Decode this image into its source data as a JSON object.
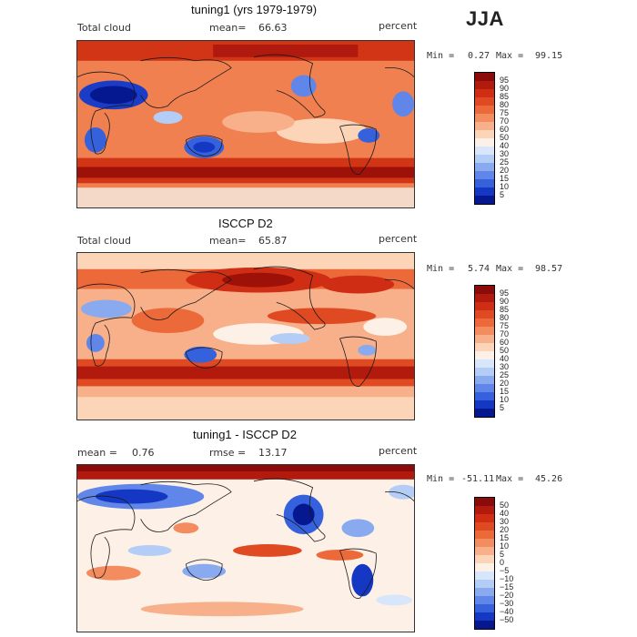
{
  "season": "JJA",
  "panels": [
    {
      "title": "tuning1 (yrs 1979-1979)",
      "left_label": "Total cloud",
      "mid_label": "mean=",
      "mid_value": "66.63",
      "right_label": "percent",
      "min_label": "Min =",
      "min_value": "0.27",
      "max_label": "Max =",
      "max_value": "99.15",
      "colorbar_labels": [
        "95",
        "90",
        "85",
        "80",
        "75",
        "70",
        "60",
        "50",
        "40",
        "30",
        "25",
        "20",
        "15",
        "10",
        "5"
      ]
    },
    {
      "title": "ISCCP D2",
      "left_label": "Total cloud",
      "mid_label": "mean=",
      "mid_value": "65.87",
      "right_label": "percent",
      "min_label": "Min =",
      "min_value": "5.74",
      "max_label": "Max =",
      "max_value": "98.57",
      "colorbar_labels": [
        "95",
        "90",
        "85",
        "80",
        "75",
        "70",
        "60",
        "50",
        "40",
        "30",
        "25",
        "20",
        "15",
        "10",
        "5"
      ]
    },
    {
      "title": "tuning1 - ISCCP D2",
      "left_label": "mean =",
      "left_value": "0.76",
      "mid_label": "rmse =",
      "mid_value": "13.17",
      "right_label": "percent",
      "min_label": "Min =",
      "min_value": "-51.11",
      "max_label": "Max =",
      "max_value": "45.26",
      "colorbar_labels": [
        "50",
        "40",
        "30",
        "20",
        "15",
        "10",
        "5",
        "0",
        "−5",
        "−10",
        "−15",
        "−20",
        "−30",
        "−40",
        "−50"
      ]
    }
  ],
  "colors": {
    "scale": [
      "#8b0a0a",
      "#b21a0e",
      "#cf2e14",
      "#e04a22",
      "#ec6a3a",
      "#f38c5e",
      "#f8b08a",
      "#fcd4b8",
      "#fdf0e6",
      "#d8e6fb",
      "#b4cdf6",
      "#8aaaf0",
      "#5f86e8",
      "#3561dd",
      "#1438c4",
      "#06188f"
    ],
    "border": "#000000",
    "coast": "#1a1a1a"
  },
  "chart_data": [
    {
      "type": "heatmap",
      "title": "tuning1 (yrs 1979-1979)",
      "variable": "Total cloud",
      "units": "percent",
      "mean": 66.63,
      "min": 0.27,
      "max": 99.15,
      "levels": [
        5,
        10,
        15,
        20,
        25,
        30,
        40,
        50,
        60,
        70,
        75,
        80,
        85,
        90,
        95
      ]
    },
    {
      "type": "heatmap",
      "title": "ISCCP D2",
      "variable": "Total cloud",
      "units": "percent",
      "mean": 65.87,
      "min": 5.74,
      "max": 98.57,
      "levels": [
        5,
        10,
        15,
        20,
        25,
        30,
        40,
        50,
        60,
        70,
        75,
        80,
        85,
        90,
        95
      ]
    },
    {
      "type": "heatmap",
      "title": "tuning1 - ISCCP D2",
      "units": "percent",
      "mean": 0.76,
      "rmse": 13.17,
      "min": -51.11,
      "max": 45.26,
      "levels": [
        -50,
        -40,
        -30,
        -20,
        -15,
        -10,
        -5,
        0,
        5,
        10,
        15,
        20,
        30,
        40,
        50
      ]
    }
  ]
}
